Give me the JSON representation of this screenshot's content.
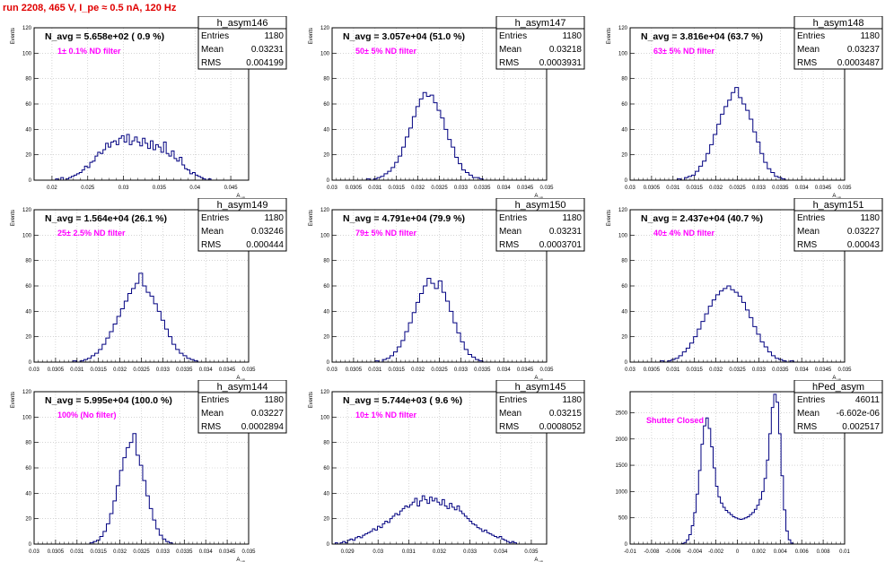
{
  "page": {
    "run_title": "run 2208,   465 V, I_pe ≈ 0.5 nA, 120 Hz",
    "colors": {
      "hist_line": "#000080",
      "grid": "#bbbbbb",
      "title_text": "#e00000",
      "annotation": "#ff00ff",
      "frame": "#000000"
    }
  },
  "chart_data": [
    {
      "type": "histogram",
      "hist_name": "h_asym146",
      "header": "N_avg = 5.658e+02 ( 0.9 %)",
      "filter_label": "1± 0.1% ND filter",
      "stats": {
        "entries": "1180",
        "mean": "0.03231",
        "rms": "0.004199"
      },
      "ylabel": "Events",
      "xlabel": "A",
      "xlabel_sub": "μp",
      "xlim": [
        0.0175,
        0.0475
      ],
      "ylim": [
        0,
        120
      ],
      "xticks": [
        0.02,
        0.025,
        0.03,
        0.035,
        0.04,
        0.045
      ],
      "xtick_labels": [
        "0.02",
        "0.025",
        "0.03",
        "0.035",
        "0.04",
        "0.045"
      ],
      "yticks": [
        0,
        20,
        40,
        60,
        80,
        100,
        120
      ],
      "ytick_labels": [
        "0",
        "20",
        "40",
        "60",
        "80",
        "100",
        "120"
      ],
      "grid": true,
      "bin_edges": [
        0.0205,
        0.0426
      ],
      "values": [
        1,
        0,
        2,
        0,
        1,
        2,
        3,
        4,
        5,
        6,
        8,
        11,
        10,
        14,
        15,
        19,
        22,
        21,
        24,
        29,
        26,
        30,
        31,
        28,
        33,
        35,
        30,
        36,
        28,
        31,
        34,
        30,
        27,
        33,
        29,
        25,
        31,
        24,
        28,
        26,
        22,
        30,
        21,
        19,
        23,
        17,
        15,
        18,
        12,
        9,
        8,
        5,
        6,
        4,
        3,
        2,
        1,
        0,
        1,
        0
      ]
    },
    {
      "type": "histogram",
      "hist_name": "h_asym147",
      "header": "N_avg = 3.057e+04 (51.0 %)",
      "filter_label": "50± 5% ND filter",
      "stats": {
        "entries": "1180",
        "mean": "0.03218",
        "rms": "0.0003931"
      },
      "ylabel": "Events",
      "xlabel": "A",
      "xlabel_sub": "μp",
      "xlim": [
        0.03,
        0.035
      ],
      "ylim": [
        0,
        120
      ],
      "xticks": [
        0.03,
        0.0305,
        0.031,
        0.0315,
        0.032,
        0.0325,
        0.033,
        0.0335,
        0.034,
        0.0345,
        0.035
      ],
      "xtick_labels": [
        "0.03",
        "0.0305",
        "0.031",
        "0.0315",
        "0.032",
        "0.0325",
        "0.033",
        "0.0335",
        "0.034",
        "0.0345",
        "0.035"
      ],
      "yticks": [
        0,
        20,
        40,
        60,
        80,
        100,
        120
      ],
      "ytick_labels": [
        "0",
        "20",
        "40",
        "60",
        "80",
        "100",
        "120"
      ],
      "grid": true,
      "bin_edges": [
        0.0308,
        0.0336
      ],
      "values": [
        1,
        0,
        1,
        2,
        3,
        5,
        7,
        10,
        14,
        19,
        26,
        34,
        41,
        50,
        58,
        64,
        69,
        66,
        67,
        61,
        55,
        49,
        40,
        32,
        26,
        18,
        13,
        8,
        6,
        4,
        2,
        2,
        1,
        0
      ]
    },
    {
      "type": "histogram",
      "hist_name": "h_asym148",
      "header": "N_avg = 3.816e+04 (63.7 %)",
      "filter_label": "63± 5% ND filter",
      "stats": {
        "entries": "1180",
        "mean": "0.03237",
        "rms": "0.0003487"
      },
      "ylabel": "Events",
      "xlabel": "A",
      "xlabel_sub": "μp",
      "xlim": [
        0.03,
        0.035
      ],
      "ylim": [
        0,
        120
      ],
      "xticks": [
        0.03,
        0.0305,
        0.031,
        0.0315,
        0.032,
        0.0325,
        0.033,
        0.0335,
        0.034,
        0.0345,
        0.035
      ],
      "xtick_labels": [
        "0.03",
        "0.0305",
        "0.031",
        "0.0315",
        "0.032",
        "0.0325",
        "0.033",
        "0.0335",
        "0.034",
        "0.0345",
        "0.035"
      ],
      "yticks": [
        0,
        20,
        40,
        60,
        80,
        100,
        120
      ],
      "ytick_labels": [
        "0",
        "20",
        "40",
        "60",
        "80",
        "100",
        "120"
      ],
      "grid": true,
      "bin_edges": [
        0.0311,
        0.0337
      ],
      "values": [
        1,
        0,
        2,
        3,
        4,
        7,
        11,
        15,
        21,
        28,
        36,
        44,
        52,
        58,
        63,
        69,
        73,
        65,
        60,
        55,
        48,
        38,
        30,
        21,
        14,
        9,
        6,
        3,
        2,
        1,
        0
      ]
    },
    {
      "type": "histogram",
      "hist_name": "h_asym149",
      "header": "N_avg = 1.564e+04 (26.1 %)",
      "filter_label": "25± 2.5% ND filter",
      "stats": {
        "entries": "1180",
        "mean": "0.03246",
        "rms": "0.000444"
      },
      "ylabel": "Events",
      "xlabel": "A",
      "xlabel_sub": "μp",
      "xlim": [
        0.03,
        0.035
      ],
      "ylim": [
        0,
        120
      ],
      "xticks": [
        0.03,
        0.0305,
        0.031,
        0.0315,
        0.032,
        0.0325,
        0.033,
        0.0335,
        0.034,
        0.0345,
        0.035
      ],
      "xtick_labels": [
        "0.03",
        "0.0305",
        "0.031",
        "0.0315",
        "0.032",
        "0.0325",
        "0.033",
        "0.0335",
        "0.034",
        "0.0345",
        "0.035"
      ],
      "yticks": [
        0,
        20,
        40,
        60,
        80,
        100,
        120
      ],
      "ytick_labels": [
        "0",
        "20",
        "40",
        "60",
        "80",
        "100",
        "120"
      ],
      "grid": true,
      "bin_edges": [
        0.0309,
        0.0339
      ],
      "values": [
        1,
        0,
        1,
        2,
        3,
        5,
        7,
        10,
        14,
        19,
        24,
        30,
        36,
        42,
        48,
        54,
        58,
        62,
        70,
        60,
        55,
        52,
        46,
        40,
        33,
        26,
        20,
        14,
        10,
        7,
        5,
        3,
        2,
        1,
        0
      ]
    },
    {
      "type": "histogram",
      "hist_name": "h_asym150",
      "header": "N_avg = 4.791e+04 (79.9 %)",
      "filter_label": "79± 5% ND filter",
      "stats": {
        "entries": "1180",
        "mean": "0.03231",
        "rms": "0.0003701"
      },
      "ylabel": "Events",
      "xlabel": "A",
      "xlabel_sub": "μp",
      "xlim": [
        0.03,
        0.035
      ],
      "ylim": [
        0,
        120
      ],
      "xticks": [
        0.03,
        0.0305,
        0.031,
        0.0315,
        0.032,
        0.0325,
        0.033,
        0.0335,
        0.034,
        0.0345,
        0.035
      ],
      "xtick_labels": [
        "0.03",
        "0.0305",
        "0.031",
        "0.0315",
        "0.032",
        "0.0325",
        "0.033",
        "0.0335",
        "0.034",
        "0.0345",
        "0.035"
      ],
      "yticks": [
        0,
        20,
        40,
        60,
        80,
        100,
        120
      ],
      "ytick_labels": [
        "0",
        "20",
        "40",
        "60",
        "80",
        "100",
        "120"
      ],
      "grid": true,
      "bin_edges": [
        0.031,
        0.0336
      ],
      "values": [
        1,
        0,
        2,
        3,
        5,
        8,
        12,
        17,
        24,
        31,
        39,
        47,
        54,
        60,
        66,
        62,
        58,
        64,
        55,
        48,
        40,
        31,
        23,
        16,
        10,
        6,
        4,
        2,
        1,
        0
      ]
    },
    {
      "type": "histogram",
      "hist_name": "h_asym151",
      "header": "N_avg = 2.437e+04 (40.7 %)",
      "filter_label": "40± 4% ND filter",
      "stats": {
        "entries": "1180",
        "mean": "0.03227",
        "rms": "0.00043"
      },
      "ylabel": "Events",
      "xlabel": "A",
      "xlabel_sub": "μp",
      "xlim": [
        0.03,
        0.035
      ],
      "ylim": [
        0,
        120
      ],
      "xticks": [
        0.03,
        0.0305,
        0.031,
        0.0315,
        0.032,
        0.0325,
        0.033,
        0.0335,
        0.034,
        0.0345,
        0.035
      ],
      "xtick_labels": [
        "0.03",
        "0.0305",
        "0.031",
        "0.0315",
        "0.032",
        "0.0325",
        "0.033",
        "0.0335",
        "0.034",
        "0.0345",
        "0.035"
      ],
      "yticks": [
        0,
        20,
        40,
        60,
        80,
        100,
        120
      ],
      "ytick_labels": [
        "0",
        "20",
        "40",
        "60",
        "80",
        "100",
        "120"
      ],
      "grid": true,
      "bin_edges": [
        0.0307,
        0.0339
      ],
      "values": [
        1,
        0,
        1,
        2,
        3,
        5,
        8,
        11,
        15,
        20,
        26,
        32,
        38,
        44,
        49,
        53,
        56,
        58,
        60,
        57,
        55,
        52,
        47,
        41,
        35,
        28,
        22,
        16,
        12,
        8,
        5,
        3,
        2,
        1,
        0,
        1,
        0
      ]
    },
    {
      "type": "histogram",
      "hist_name": "h_asym144",
      "header": "N_avg = 5.995e+04 (100.0 %)",
      "filter_label": "100% (No filter)",
      "stats": {
        "entries": "1180",
        "mean": "0.03227",
        "rms": "0.0002894"
      },
      "ylabel": "Events",
      "xlabel": "A",
      "xlabel_sub": "μp",
      "xlim": [
        0.03,
        0.035
      ],
      "ylim": [
        0,
        120
      ],
      "xticks": [
        0.03,
        0.0305,
        0.031,
        0.0315,
        0.032,
        0.0325,
        0.033,
        0.0335,
        0.034,
        0.0345,
        0.035
      ],
      "xtick_labels": [
        "0.03",
        "0.0305",
        "0.031",
        "0.0315",
        "0.032",
        "0.0325",
        "0.033",
        "0.0335",
        "0.034",
        "0.0345",
        "0.035"
      ],
      "yticks": [
        0,
        20,
        40,
        60,
        80,
        100,
        120
      ],
      "ytick_labels": [
        "0",
        "20",
        "40",
        "60",
        "80",
        "100",
        "120"
      ],
      "grid": true,
      "bin_edges": [
        0.0313,
        0.0333
      ],
      "values": [
        1,
        2,
        3,
        6,
        10,
        16,
        24,
        34,
        46,
        58,
        68,
        76,
        80,
        87,
        70,
        62,
        50,
        38,
        28,
        19,
        12,
        7,
        4,
        2,
        1,
        0
      ]
    },
    {
      "type": "histogram",
      "hist_name": "h_asym145",
      "header": "N_avg = 5.744e+03 ( 9.6 %)",
      "filter_label": "10± 1% ND filter",
      "stats": {
        "entries": "1180",
        "mean": "0.03215",
        "rms": "0.0008052"
      },
      "ylabel": "Events",
      "xlabel": "A",
      "xlabel_sub": "μp",
      "xlim": [
        0.0285,
        0.0355
      ],
      "ylim": [
        0,
        120
      ],
      "xticks": [
        0.029,
        0.03,
        0.031,
        0.032,
        0.033,
        0.034,
        0.035
      ],
      "xtick_labels": [
        "0.029",
        "0.03",
        "0.031",
        "0.032",
        "0.033",
        "0.034",
        "0.035"
      ],
      "yticks": [
        0,
        20,
        40,
        60,
        80,
        100,
        120
      ],
      "ytick_labels": [
        "0",
        "20",
        "40",
        "60",
        "80",
        "100",
        "120"
      ],
      "grid": true,
      "bin_edges": [
        0.0286,
        0.0346
      ],
      "values": [
        1,
        0,
        1,
        2,
        1,
        3,
        4,
        3,
        5,
        6,
        5,
        7,
        8,
        9,
        10,
        12,
        11,
        14,
        13,
        16,
        18,
        17,
        20,
        22,
        24,
        23,
        26,
        28,
        30,
        29,
        31,
        33,
        36,
        30,
        34,
        38,
        35,
        32,
        37,
        34,
        36,
        33,
        31,
        35,
        30,
        28,
        32,
        29,
        27,
        30,
        26,
        24,
        22,
        20,
        18,
        16,
        15,
        13,
        12,
        10,
        11,
        9,
        8,
        7,
        6,
        5,
        6,
        4,
        3,
        2,
        1,
        2,
        1,
        0
      ]
    },
    {
      "type": "histogram",
      "hist_name": "hPed_asym",
      "header": "",
      "filter_label": "Shutter Closed",
      "stats": {
        "entries": "46011",
        "mean": "-6.602e-06",
        "rms": "0.002517"
      },
      "ylabel": "",
      "xlabel": "",
      "xlabel_sub": "",
      "xlim": [
        -0.01,
        0.01
      ],
      "ylim": [
        0,
        2900
      ],
      "xticks": [
        -0.01,
        -0.008,
        -0.006,
        -0.004,
        -0.002,
        0,
        0.002,
        0.004,
        0.006,
        0.008,
        0.01
      ],
      "xtick_labels": [
        "-0.01",
        "-0.008",
        "-0.006",
        "-0.004",
        "-0.002",
        "0",
        "0.002",
        "0.004",
        "0.006",
        "0.008",
        "0.01"
      ],
      "yticks": [
        0,
        500,
        1000,
        1500,
        2000,
        2500
      ],
      "ytick_labels": [
        "0",
        "500",
        "1000",
        "1500",
        "2000",
        "2500"
      ],
      "grid": true,
      "bin_edges": [
        -0.0052,
        0.0052
      ],
      "values": [
        10,
        30,
        80,
        180,
        350,
        600,
        950,
        1400,
        1900,
        2250,
        2400,
        2200,
        1850,
        1450,
        1100,
        900,
        780,
        700,
        640,
        600,
        560,
        520,
        500,
        480,
        470,
        480,
        500,
        520,
        560,
        600,
        660,
        740,
        850,
        1000,
        1250,
        1600,
        2100,
        2600,
        2850,
        2700,
        2100,
        1300,
        650,
        250,
        80,
        20
      ]
    }
  ]
}
